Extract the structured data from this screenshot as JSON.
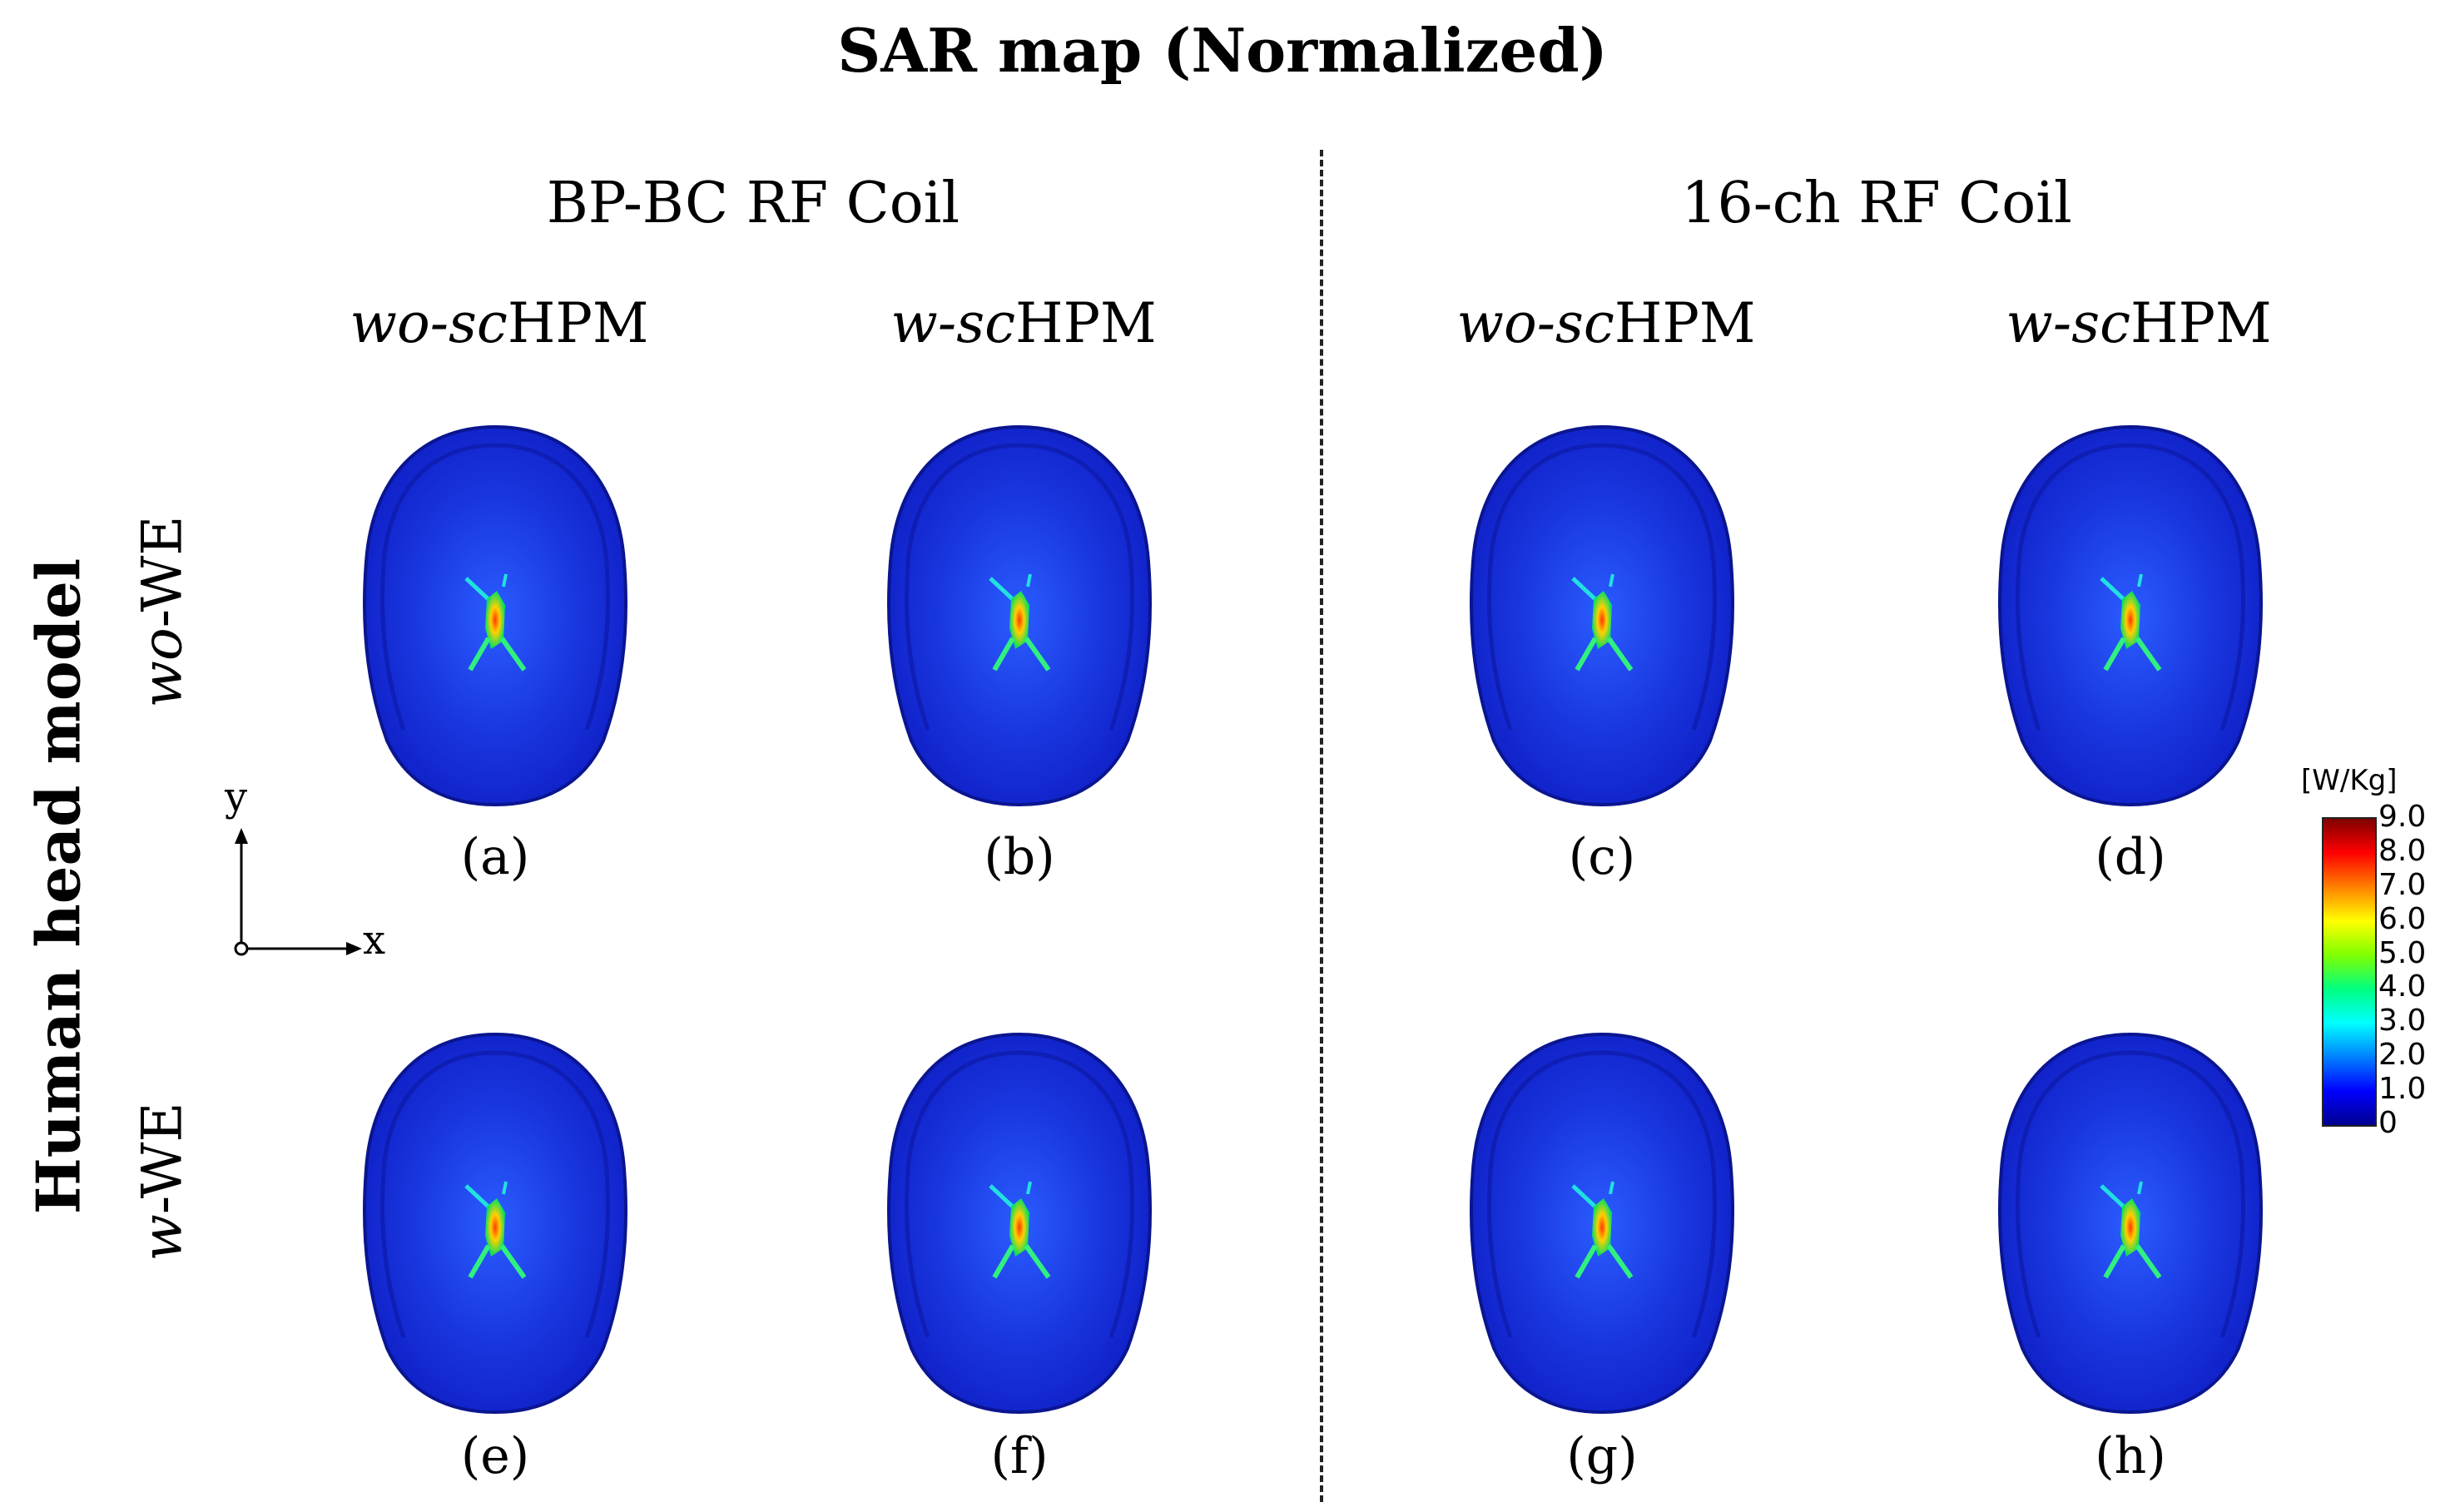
{
  "title": "SAR map (Normalized)",
  "coils": [
    {
      "label": "BP-BC RF Coil"
    },
    {
      "label": "16-ch RF Coil"
    }
  ],
  "columns": [
    {
      "italic": "wo-sc",
      "rest": "HPM"
    },
    {
      "italic": "w-sc",
      "rest": "HPM"
    },
    {
      "italic": "wo-sc",
      "rest": "HPM"
    },
    {
      "italic": "w-sc",
      "rest": "HPM"
    }
  ],
  "rows": [
    {
      "italic": "wo",
      "rest": "-WE"
    },
    {
      "italic": "w",
      "rest": "-WE"
    }
  ],
  "side_label": "Human head model",
  "panels": [
    "(a)",
    "(b)",
    "(c)",
    "(d)",
    "(e)",
    "(f)",
    "(g)",
    "(h)"
  ],
  "axes": {
    "y": "y",
    "x": "x"
  },
  "colorbar": {
    "unit": "[W/Kg]",
    "ticks": [
      "9.0",
      "8.0",
      "7.0",
      "6.0",
      "5.0",
      "4.0",
      "3.0",
      "2.0",
      "1.0",
      "0"
    ],
    "colors": [
      "#00008f",
      "#0000ff",
      "#0080ff",
      "#00ffff",
      "#00ff80",
      "#80ff00",
      "#ffff00",
      "#ff8000",
      "#ff0000",
      "#800000"
    ]
  },
  "palette": {
    "head_fill": "#1a2fd6",
    "head_rim": "#0a1590",
    "hotspot": "#ff6a00"
  }
}
